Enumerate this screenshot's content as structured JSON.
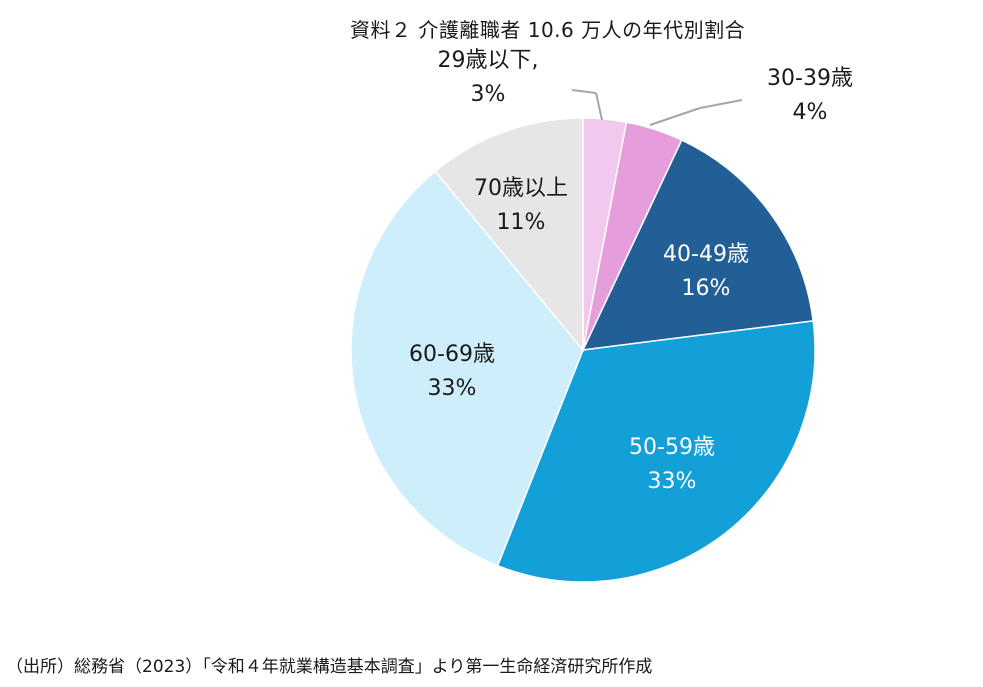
{
  "title": "資料２ 介護離職者 10.6 万人の年代別割合",
  "source": "（出所）総務省（2023）「令和４年就業構造基本調査」より第一生命経済研究所作成",
  "chart_data": {
    "type": "pie",
    "title": "資料２ 介護離職者 10.6 万人の年代別割合",
    "start_angle_deg": 0,
    "direction": "clockwise",
    "slices": [
      {
        "category": "29歳以下,",
        "value": 3,
        "percent_label": "3%",
        "color": "#f3c8ee",
        "label_color": "#1a1a1a"
      },
      {
        "category": "30-39歳",
        "value": 4,
        "percent_label": "4%",
        "color": "#e59ddc",
        "label_color": "#1a1a1a"
      },
      {
        "category": "40-49歳",
        "value": 16,
        "percent_label": "16%",
        "color": "#235f97",
        "label_color": "#ffffff"
      },
      {
        "category": "50-59歳",
        "value": 33,
        "percent_label": "33%",
        "color": "#139fd8",
        "label_color": "#ffffff"
      },
      {
        "category": "60-69歳",
        "value": 33,
        "percent_label": "33%",
        "color": "#cfeefb",
        "label_color": "#1a1a1a"
      },
      {
        "category": "70歳以上",
        "value": 11,
        "percent_label": "11%",
        "color": "#e6e6e6",
        "label_color": "#1a1a1a"
      }
    ]
  }
}
